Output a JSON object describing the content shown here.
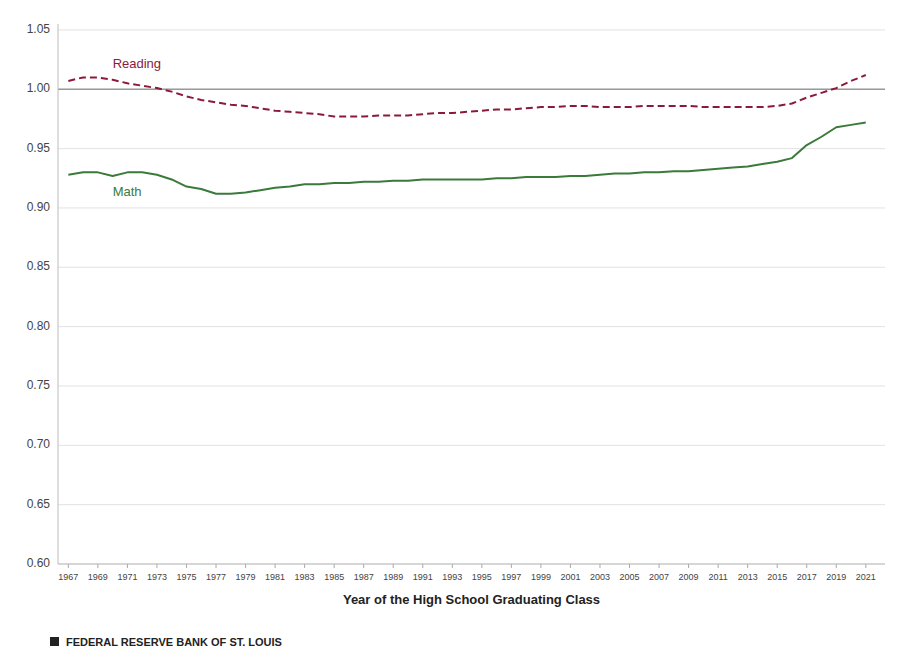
{
  "chart_data": {
    "type": "line",
    "x_label": "Year of the High School Graduating Class",
    "x": [
      1967,
      1968,
      1969,
      1970,
      1971,
      1972,
      1973,
      1974,
      1975,
      1976,
      1977,
      1978,
      1979,
      1980,
      1981,
      1982,
      1983,
      1984,
      1985,
      1986,
      1987,
      1988,
      1989,
      1990,
      1991,
      1992,
      1993,
      1994,
      1995,
      1996,
      1997,
      1998,
      1999,
      2000,
      2001,
      2002,
      2003,
      2004,
      2005,
      2006,
      2007,
      2008,
      2009,
      2010,
      2011,
      2012,
      2013,
      2014,
      2015,
      2016,
      2017,
      2018,
      2019,
      2020,
      2021
    ],
    "series": [
      {
        "name": "Reading",
        "color": "#8B1A3A",
        "line_style": "dashed",
        "values": [
          1.007,
          1.01,
          1.01,
          1.008,
          1.005,
          1.003,
          1.001,
          0.998,
          0.994,
          0.991,
          0.989,
          0.987,
          0.986,
          0.984,
          0.982,
          0.981,
          0.98,
          0.979,
          0.977,
          0.977,
          0.977,
          0.978,
          0.978,
          0.978,
          0.979,
          0.98,
          0.98,
          0.981,
          0.982,
          0.983,
          0.983,
          0.984,
          0.985,
          0.985,
          0.986,
          0.986,
          0.985,
          0.985,
          0.985,
          0.986,
          0.986,
          0.986,
          0.986,
          0.985,
          0.985,
          0.985,
          0.985,
          0.985,
          0.986,
          0.988,
          0.993,
          0.997,
          1.001,
          1.007,
          1.012
        ]
      },
      {
        "name": "Math",
        "color": "#3A7A3A",
        "line_style": "solid",
        "values": [
          0.928,
          0.93,
          0.93,
          0.927,
          0.93,
          0.93,
          0.928,
          0.924,
          0.918,
          0.916,
          0.912,
          0.912,
          0.913,
          0.915,
          0.917,
          0.918,
          0.92,
          0.92,
          0.921,
          0.921,
          0.922,
          0.922,
          0.923,
          0.923,
          0.924,
          0.924,
          0.924,
          0.924,
          0.924,
          0.925,
          0.925,
          0.926,
          0.926,
          0.926,
          0.927,
          0.927,
          0.928,
          0.929,
          0.929,
          0.93,
          0.93,
          0.931,
          0.931,
          0.932,
          0.933,
          0.934,
          0.935,
          0.937,
          0.939,
          0.942,
          0.953,
          0.96,
          0.968,
          0.97,
          0.972
        ]
      }
    ],
    "reference_line": 1.0,
    "xlim": [
      1966.3,
      2022.3
    ],
    "xticks": [
      1967,
      1969,
      1971,
      1973,
      1975,
      1977,
      1979,
      1981,
      1983,
      1985,
      1987,
      1989,
      1991,
      1993,
      1995,
      1997,
      1999,
      2001,
      2003,
      2005,
      2007,
      2009,
      2011,
      2013,
      2015,
      2017,
      2019,
      2021
    ],
    "ylim": [
      0.6,
      1.055
    ],
    "yticks": [
      {
        "value": 0.6,
        "label": "0.60"
      },
      0.65,
      {
        "value": 0.7,
        "label": "0.70"
      },
      0.75,
      {
        "value": 0.8,
        "label": "0.80"
      },
      0.85,
      {
        "value": 0.9,
        "label": "0.90"
      },
      0.95,
      {
        "value": 1.0,
        "label": "1.00"
      },
      1.05
    ],
    "grid": true,
    "annotations": [
      "FEDERAL RESERVE BANK OF ST. LOUIS"
    ]
  }
}
